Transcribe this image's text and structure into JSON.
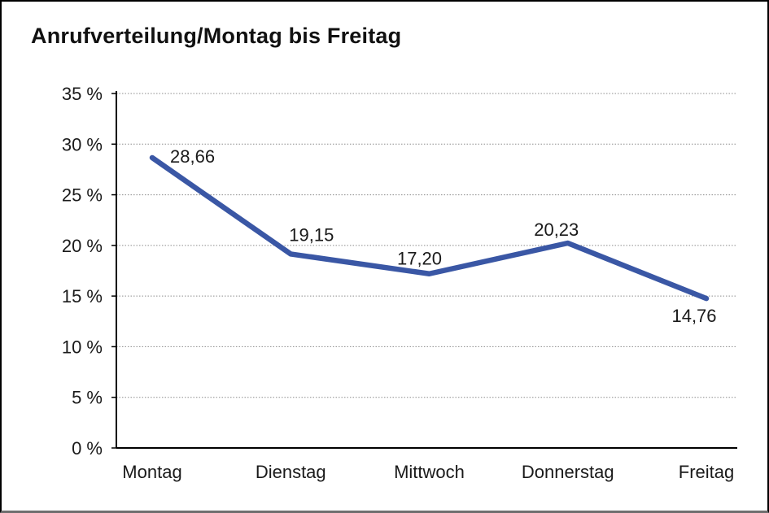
{
  "title": "Anrufverteilung/Montag bis Freitag",
  "chart_data": {
    "type": "line",
    "title": "Anrufverteilung/Montag bis Freitag",
    "categories": [
      "Montag",
      "Dienstag",
      "Mittwoch",
      "Donnerstag",
      "Freitag"
    ],
    "values": [
      28.66,
      19.15,
      17.2,
      20.23,
      14.76
    ],
    "data_labels": [
      "28,66",
      "19,15",
      "17,20",
      "20,23",
      "14,76"
    ],
    "series_name": "Anrufverteilung",
    "ylim": [
      0,
      35
    ],
    "y_ticks": [
      0,
      5,
      10,
      15,
      20,
      25,
      30,
      35
    ],
    "y_tick_labels": [
      "0 %",
      "5 %",
      "10 %",
      "15 %",
      "20 %",
      "25 %",
      "30 %",
      "35 %"
    ],
    "xlabel": "",
    "ylabel": "",
    "grid": "horizontal-dotted",
    "legend": "none",
    "colors": {
      "line": "#3A57A5",
      "axis": "#000000",
      "grid": "#8c8c8c",
      "text": "#1a1a1a"
    }
  }
}
